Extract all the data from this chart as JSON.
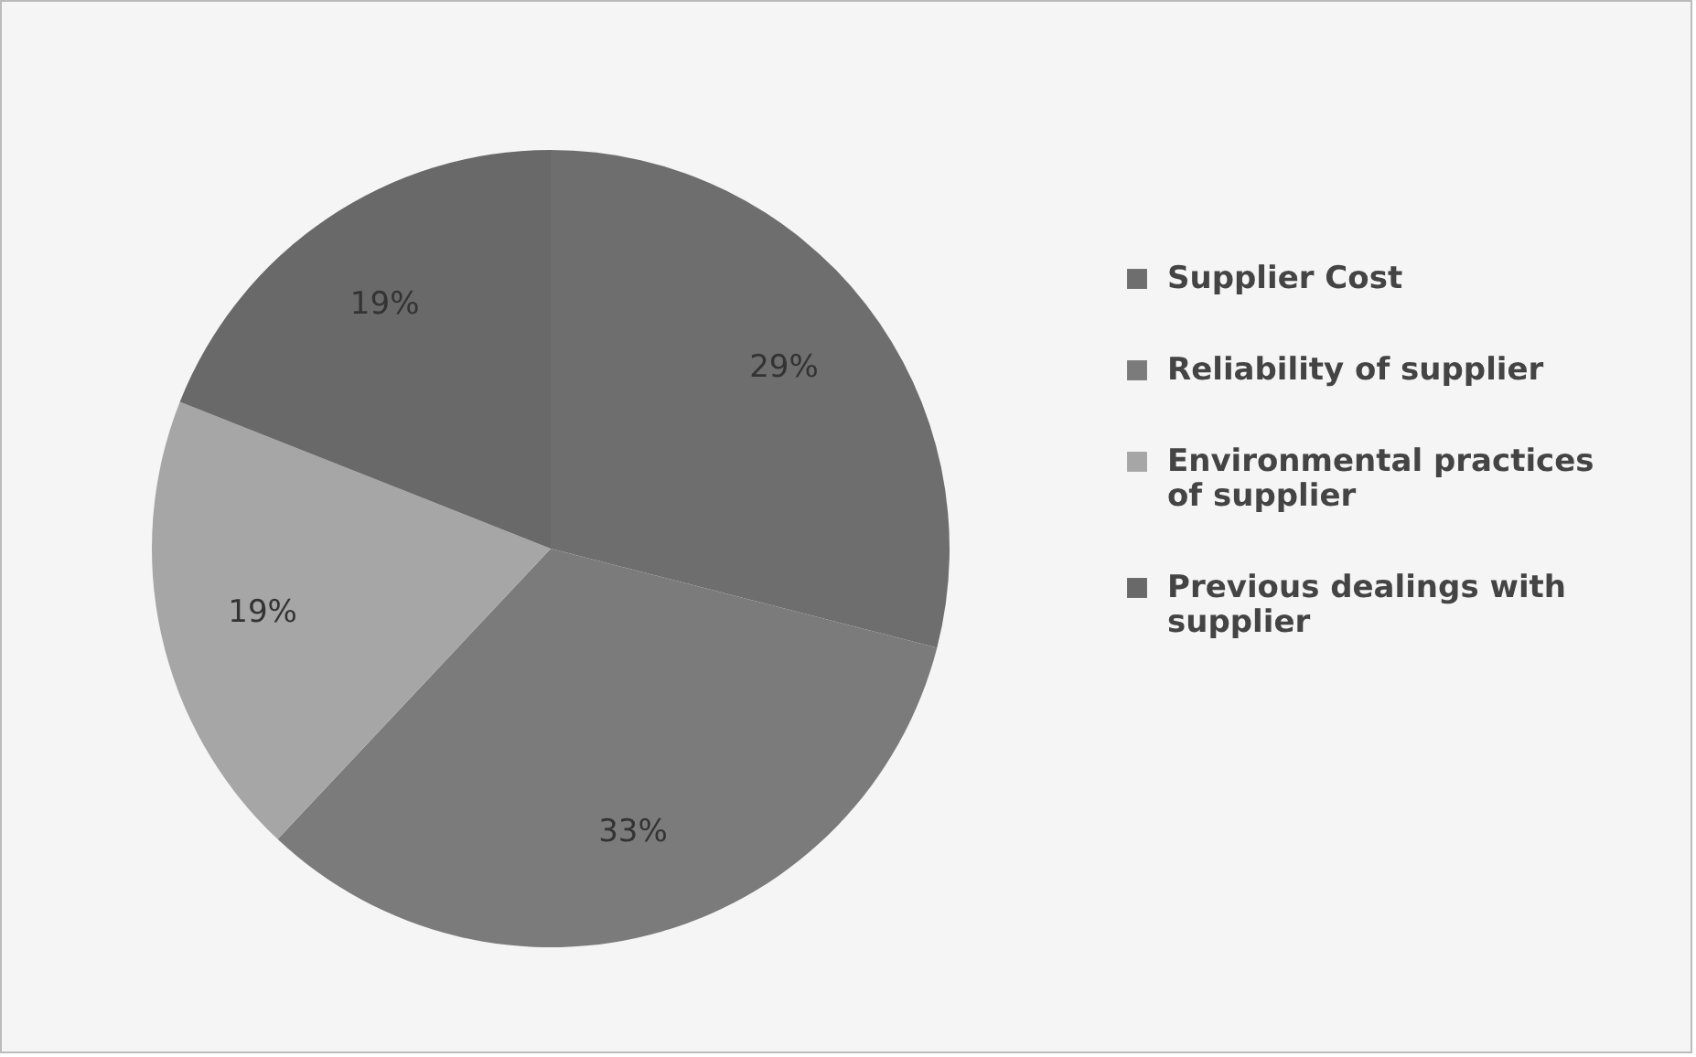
{
  "chart_data": {
    "type": "pie",
    "categories": [
      "Supplier Cost",
      "Reliability of supplier",
      "Environmental practices of supplier",
      "Previous dealings with supplier"
    ],
    "values": [
      29,
      33,
      19,
      19
    ],
    "value_labels": [
      "29%",
      "33%",
      "19%",
      "19%"
    ],
    "colors": [
      "#6e6e6e",
      "#7b7b7b",
      "#a6a6a6",
      "#696969"
    ],
    "legend": "right"
  }
}
